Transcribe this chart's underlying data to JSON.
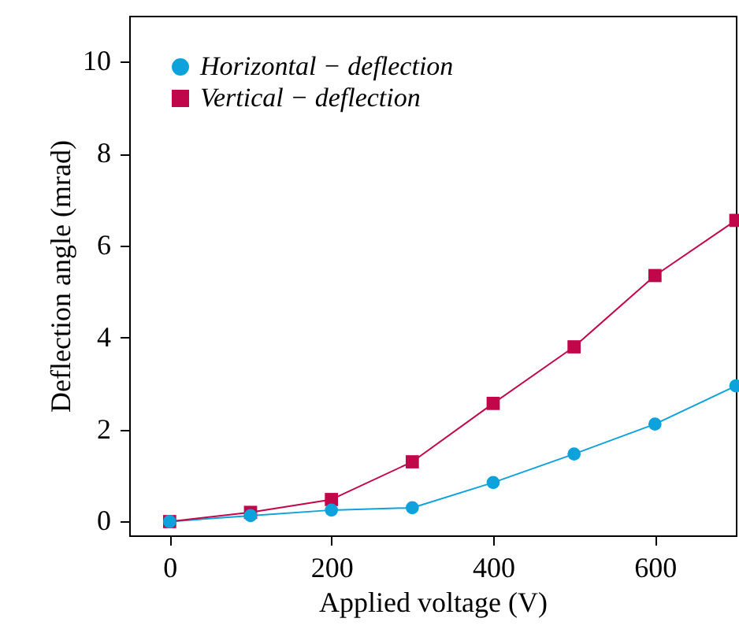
{
  "chart_data": {
    "type": "line",
    "xlabel": "Applied voltage (V)",
    "ylabel": "Deflection angle (mrad)",
    "x": [
      0,
      100,
      200,
      300,
      400,
      500,
      600,
      700
    ],
    "series": [
      {
        "name": "Horizontal − deflection",
        "color": "#0ea2dc",
        "marker": "circle",
        "values": [
          0,
          0.13,
          0.25,
          0.3,
          0.85,
          1.47,
          2.12,
          2.95
        ]
      },
      {
        "name": "Vertical − deflection",
        "color": "#c2064a",
        "marker": "square",
        "values": [
          0,
          0.2,
          0.48,
          1.3,
          2.57,
          3.8,
          5.35,
          6.55
        ]
      }
    ],
    "xlim": [
      -50,
      700
    ],
    "ylim": [
      -0.3,
      11
    ],
    "xticks": [
      0,
      200,
      400,
      600
    ],
    "yticks": [
      0,
      2,
      4,
      6,
      8,
      10
    ],
    "grid": false,
    "legend": "top left",
    "line_style": "solid"
  }
}
